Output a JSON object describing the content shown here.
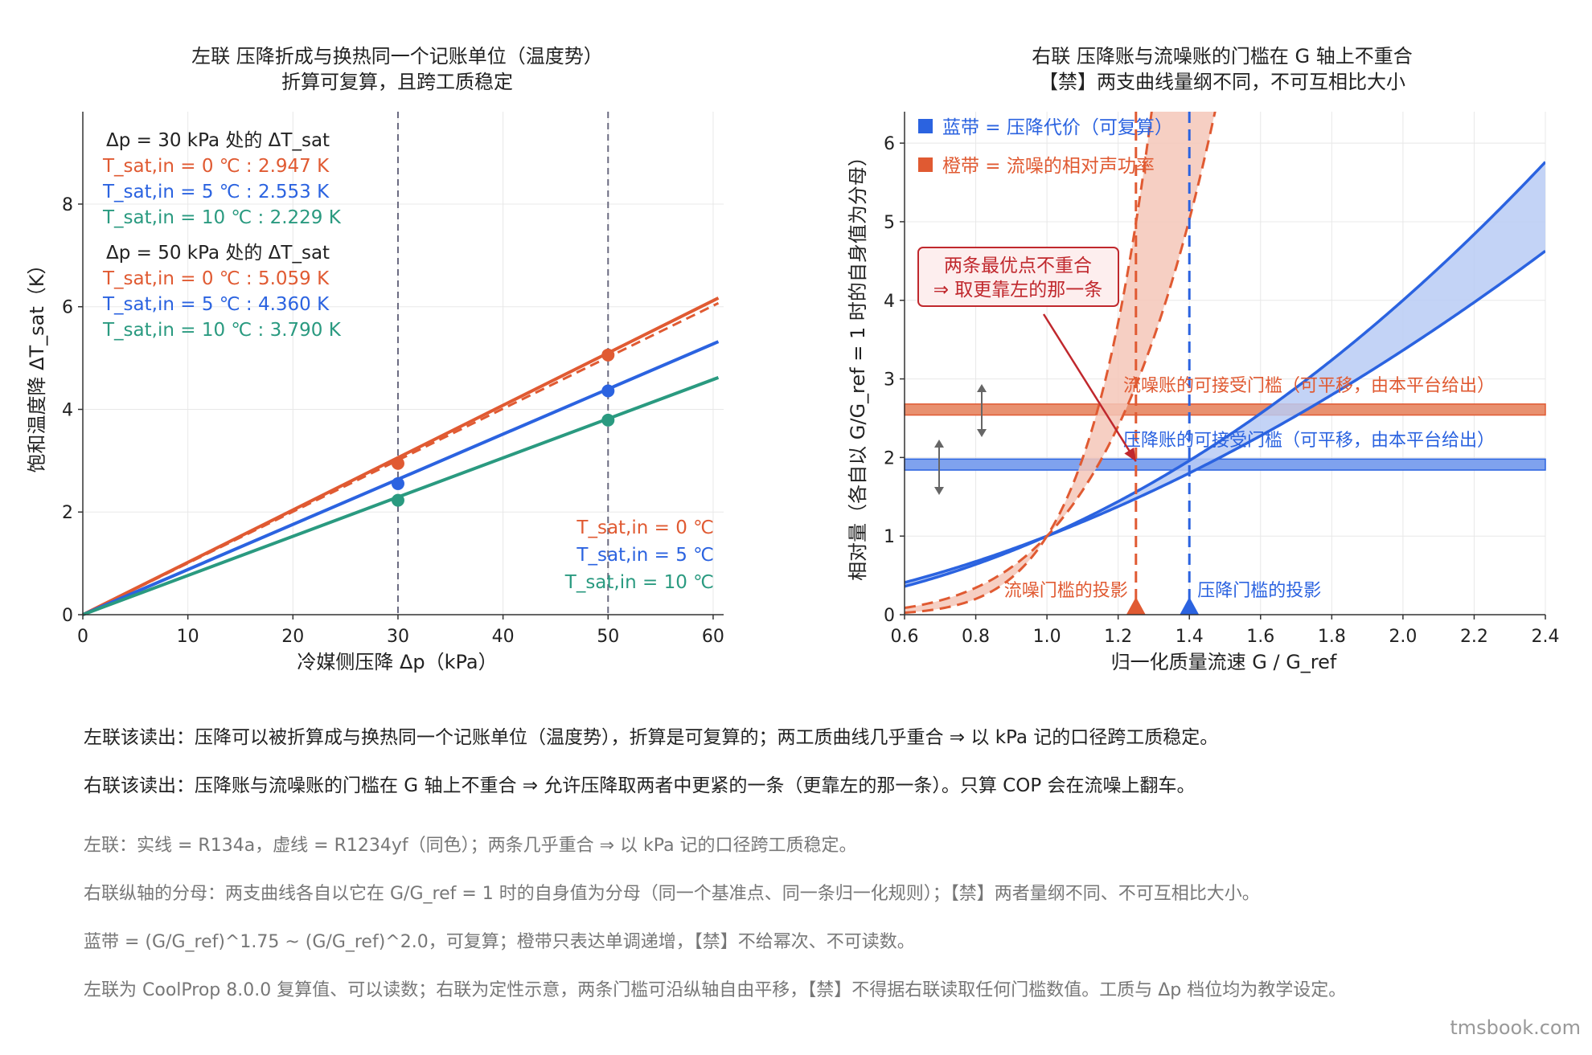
{
  "colors": {
    "r0": "#e05a32",
    "r5": "#2b63e0",
    "r10": "#2a9a80",
    "blue": "#2b63e0",
    "orange": "#e05a32",
    "orange_fill": "#f4c7b9",
    "blue_fill": "#b8cbf5",
    "grid": "#e8e8e8",
    "vline": "#6a6a80",
    "note_gray": "#777777",
    "callout": "#c0282d"
  },
  "chart_data": [
    {
      "type": "line",
      "panel": "left",
      "title": "左联  压降折成与换热同一个记账单位（温度势）",
      "subtitle": "折算可复算，且跨工质稳定",
      "xlabel": "冷媒侧压降  Δp（kPa）",
      "ylabel": "饱和温度降  ΔT_sat（K）",
      "xlim": [
        0,
        61
      ],
      "ylim": [
        0,
        9.8
      ],
      "xticks": [
        0,
        10,
        20,
        30,
        40,
        50,
        60
      ],
      "yticks": [
        0,
        2,
        4,
        6,
        8
      ],
      "vlines": [
        30,
        50
      ],
      "series": [
        {
          "name": "T_sat,in = 0 ℃",
          "color_key": "r0",
          "style": "solid",
          "x": [
            0,
            60.5
          ],
          "y": [
            0,
            6.17
          ]
        },
        {
          "name": "T_sat,in = 0 ℃",
          "color_key": "r0",
          "style": "dashed",
          "x": [
            0,
            60.5
          ],
          "y": [
            0,
            6.07
          ]
        },
        {
          "name": "T_sat,in = 5 ℃",
          "color_key": "r5",
          "style": "solid",
          "x": [
            0,
            60.5
          ],
          "y": [
            0,
            5.32
          ]
        },
        {
          "name": "T_sat,in = 10 ℃",
          "color_key": "r10",
          "style": "solid",
          "x": [
            0,
            60.5
          ],
          "y": [
            0,
            4.62
          ]
        }
      ],
      "markers": [
        {
          "x": 30,
          "y": 2.947,
          "color_key": "r0"
        },
        {
          "x": 30,
          "y": 2.553,
          "color_key": "r5"
        },
        {
          "x": 30,
          "y": 2.229,
          "color_key": "r10"
        },
        {
          "x": 50,
          "y": 5.059,
          "color_key": "r0"
        },
        {
          "x": 50,
          "y": 4.36,
          "color_key": "r5"
        },
        {
          "x": 50,
          "y": 3.79,
          "color_key": "r10"
        }
      ],
      "readouts": [
        {
          "text": "Δp = 30 kPa 处的  ΔT_sat",
          "color_key": null
        },
        {
          "text": "T_sat,in = 0 ℃ :   2.947 K",
          "color_key": "r0"
        },
        {
          "text": "T_sat,in = 5 ℃ :   2.553 K",
          "color_key": "r5"
        },
        {
          "text": "T_sat,in = 10 ℃ :   2.229 K",
          "color_key": "r10"
        },
        {
          "text": "Δp = 50 kPa 处的  ΔT_sat",
          "color_key": null
        },
        {
          "text": "T_sat,in = 0 ℃ :   5.059 K",
          "color_key": "r0"
        },
        {
          "text": "T_sat,in = 5 ℃ :   4.360 K",
          "color_key": "r5"
        },
        {
          "text": "T_sat,in = 10 ℃ :   3.790 K",
          "color_key": "r10"
        }
      ],
      "legend": [
        {
          "text": "T_sat,in = 0 ℃",
          "color_key": "r0"
        },
        {
          "text": "T_sat,in = 5 ℃",
          "color_key": "r5"
        },
        {
          "text": "T_sat,in = 10 ℃",
          "color_key": "r10"
        }
      ],
      "legend_position": "bottom-right",
      "grid": true
    },
    {
      "type": "line",
      "panel": "right",
      "title": "右联  压降账与流噪账的门槛在 G 轴上不重合",
      "subtitle": "【禁】两支曲线量纲不同，不可互相比大小",
      "xlabel": "归一化质量流速 G / G_ref",
      "ylabel": "相对量（各自以 G/G_ref = 1 时的自身值为分母）",
      "xlim": [
        0.6,
        2.4
      ],
      "ylim": [
        0,
        6.4
      ],
      "xticks": [
        0.6,
        0.8,
        1.0,
        1.2,
        1.4,
        1.6,
        1.8,
        2.0,
        2.2,
        2.4
      ],
      "yticks": [
        0,
        1,
        2,
        3,
        4,
        5,
        6
      ],
      "bands": [
        {
          "name": "蓝带 = 压降代价（可复算）",
          "color_key": "blue",
          "exponent_low": 1.75,
          "exponent_high": 2.0
        },
        {
          "name": "橙带 = 流噪的相对声功率",
          "color_key": "orange",
          "exponent_low": 4.8,
          "exponent_high": 7.2
        }
      ],
      "thresholds": [
        {
          "label": "流噪账的可接受门槛（可平移，由本平台给出）",
          "y_low": 2.54,
          "y_high": 2.68,
          "color_key": "orange"
        },
        {
          "label": "压降账的可接受门槛（可平移，由本平台给出）",
          "y_low": 1.84,
          "y_high": 1.98,
          "color_key": "blue"
        }
      ],
      "projections": [
        {
          "x": 1.25,
          "label": "流噪门槛的投影",
          "color_key": "orange"
        },
        {
          "x": 1.4,
          "label": "压降门槛的投影",
          "color_key": "blue"
        }
      ],
      "legend_position": "top-left",
      "callout": {
        "line1": "两条最优点不重合",
        "line2": "⇒ 取更靠左的那一条",
        "arrow_to": {
          "x": 1.25,
          "y": 1.95
        }
      },
      "grid": true
    }
  ],
  "notes": {
    "left_read": "左联该读出：压降可以被折算成与换热同一个记账单位（温度势），折算是可复算的；两工质曲线几乎重合 ⇒ 以 kPa 记的口径跨工质稳定。",
    "right_read": "右联该读出：压降账与流噪账的门槛在 G 轴上不重合 ⇒ 允许压降取两者中更紧的一条（更靠左的那一条）。只算 COP 会在流噪上翻车。",
    "note1": "左联：实线 = R134a，虚线 = R1234yf（同色）；两条几乎重合 ⇒ 以 kPa 记的口径跨工质稳定。",
    "note2": "右联纵轴的分母：两支曲线各自以它在 G/G_ref = 1 时的自身值为分母（同一个基准点、同一条归一化规则）；【禁】两者量纲不同、不可互相比大小。",
    "note3": "蓝带 = (G/G_ref)^1.75 ~ (G/G_ref)^2.0，可复算；橙带只表达单调递增，【禁】不给幂次、不可读数。",
    "note4": "左联为 CoolProp 8.0.0 复算值、可以读数；右联为定性示意，两条门槛可沿纵轴自由平移，【禁】不得据右联读取任何门槛数值。工质与 Δp 档位均为教学设定。",
    "watermark": "tmsbook.com"
  }
}
